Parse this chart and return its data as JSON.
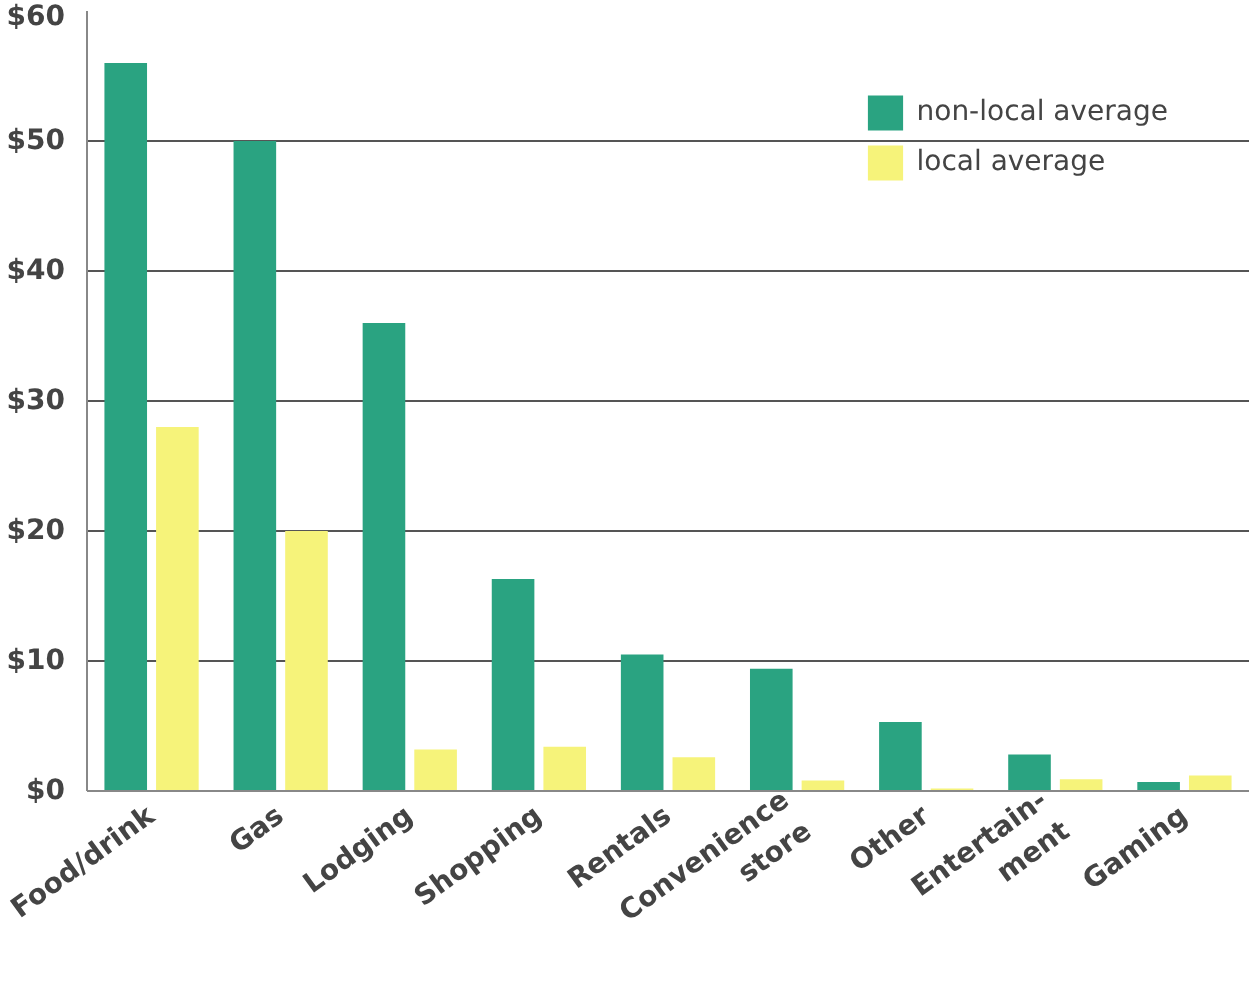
{
  "chart_data": {
    "type": "bar",
    "categories": [
      "Food/drink",
      "Gas",
      "Lodging",
      "Shopping",
      "Rentals",
      "Convenience\nstore",
      "Other",
      "Entertain-\nment",
      "Gaming"
    ],
    "series": [
      {
        "name": "non-local average",
        "color": "#2aa381",
        "values": [
          56,
          50,
          36,
          16.3,
          10.5,
          9.4,
          5.3,
          2.8,
          0.7
        ]
      },
      {
        "name": "local average",
        "color": "#f6f37a",
        "values": [
          28,
          20,
          3.2,
          3.4,
          2.6,
          0.8,
          0.2,
          0.9,
          1.2
        ]
      }
    ],
    "ylim": [
      0,
      60
    ],
    "yticks": [
      {
        "value": 0,
        "label": "$0"
      },
      {
        "value": 10,
        "label": "$10"
      },
      {
        "value": 20,
        "label": "$20"
      },
      {
        "value": 30,
        "label": "$30"
      },
      {
        "value": 40,
        "label": "$40"
      },
      {
        "value": 50,
        "label": "$50"
      },
      {
        "value": 60,
        "label": "$60"
      }
    ],
    "grid": "y",
    "legend": "top right"
  }
}
